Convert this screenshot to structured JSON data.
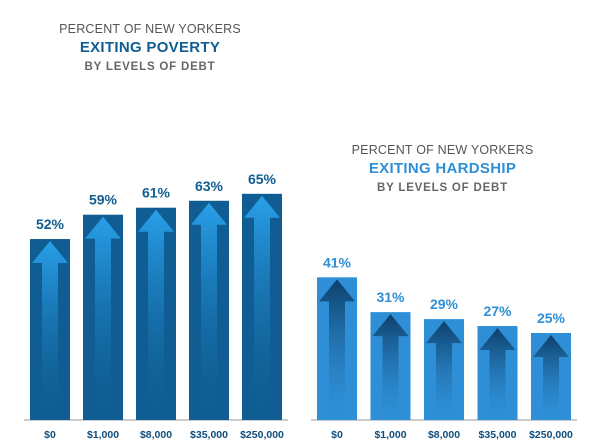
{
  "colors": {
    "poverty_bar": "#0f5d92",
    "poverty_arrow": "#1e8bd0",
    "poverty_label": "#0f5d92",
    "hardship_bar": "#2e8fd6",
    "hardship_arrow": "#0d3f6a",
    "hardship_label": "#2e8fd6",
    "baseline": "#999999",
    "tick_text": "#0f4e7d"
  },
  "chart_data": [
    {
      "type": "bar",
      "title_line1": "PERCENT OF NEW YORKERS",
      "title_line2": "EXITING POVERTY",
      "title_line3": "BY LEVELS OF DEBT",
      "categories": [
        "$0",
        "$1,000",
        "$8,000",
        "$35,000",
        "$250,000"
      ],
      "values": [
        52,
        59,
        61,
        63,
        65
      ],
      "data_labels": [
        "52%",
        "59%",
        "61%",
        "63%",
        "65%"
      ],
      "value_unit": "%",
      "arrow_direction": "up",
      "grid": false
    },
    {
      "type": "bar",
      "title_line1": "PERCENT OF NEW YORKERS",
      "title_line2": "EXITING HARDSHIP",
      "title_line3": "BY LEVELS OF DEBT",
      "categories": [
        "$0",
        "$1,000",
        "$8,000",
        "$35,000",
        "$250,000"
      ],
      "values": [
        41,
        31,
        29,
        27,
        25
      ],
      "data_labels": [
        "41%",
        "31%",
        "29%",
        "27%",
        "25%"
      ],
      "value_unit": "%",
      "arrow_direction": "down",
      "grid": false
    }
  ]
}
